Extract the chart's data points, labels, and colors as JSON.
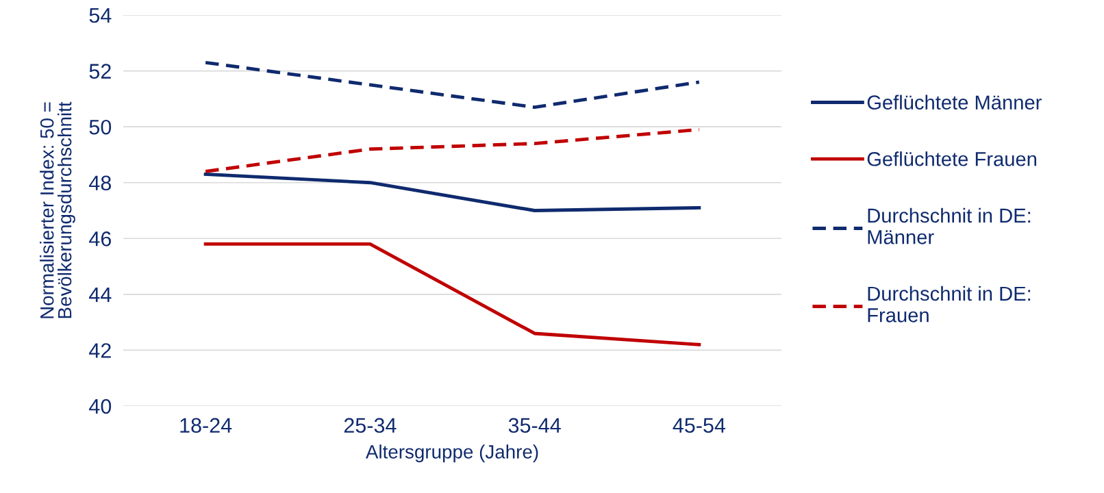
{
  "chart_data": {
    "type": "line",
    "xlabel": "Altersgruppe (Jahre)",
    "ylabel": "Normalisierter Index: 50 =\nBevölkerungsdurchschnitt",
    "categories": [
      "18-24",
      "25-34",
      "35-44",
      "45-54"
    ],
    "series": [
      {
        "name": "Geflüchtete Männer",
        "color": "#0f2a6e",
        "values": [
          48.3,
          48.0,
          47.0,
          47.1
        ],
        "line_style": "solid"
      },
      {
        "name": "Geflüchtete Frauen",
        "color": "#c00000",
        "values": [
          45.8,
          45.8,
          42.6,
          42.2
        ],
        "line_style": "solid"
      },
      {
        "name": "Durchschnit in DE:\nMänner",
        "color": "#0f2a6e",
        "values": [
          52.3,
          51.5,
          50.7,
          51.6
        ],
        "line_style": "dashed"
      },
      {
        "name": "Durchschnit in DE:\nFrauen",
        "color": "#c00000",
        "values": [
          48.4,
          49.2,
          49.4,
          49.9
        ],
        "line_style": "dashed"
      }
    ],
    "ylim": [
      40,
      54
    ],
    "yticks": [
      40,
      42,
      44,
      46,
      48,
      50,
      52,
      54
    ],
    "grid": "y",
    "legend": "right",
    "marker": "none"
  }
}
